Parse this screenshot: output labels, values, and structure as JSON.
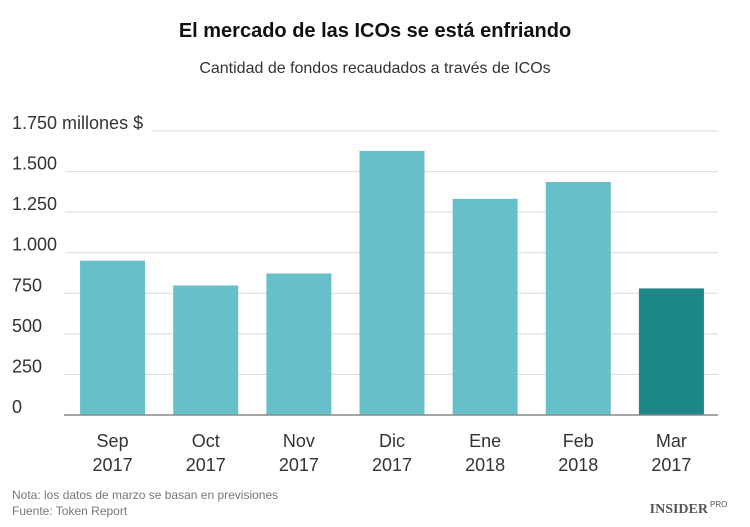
{
  "chart_data": {
    "type": "bar",
    "title": "El mercado de las ICOs se está enfriando",
    "subtitle": "Cantidad de fondos recaudados a través de ICOs",
    "categories": [
      "Sep 2017",
      "Oct 2017",
      "Nov 2017",
      "Dic 2017",
      "Ene 2018",
      "Feb 2018",
      "Mar 2017"
    ],
    "values": [
      951,
      798,
      872,
      1627,
      1332,
      1436,
      780
    ],
    "colors": [
      "#67bfca",
      "#67bfca",
      "#67bfca",
      "#67bfca",
      "#67bfca",
      "#67bfca",
      "#1d8689"
    ],
    "ylim": [
      0,
      1750
    ],
    "yticks": [
      0,
      250,
      500,
      750,
      {
        "value": 1000,
        "label": "1.000"
      },
      {
        "value": 1250,
        "label": "1.250"
      },
      {
        "value": 1500,
        "label": "1.500"
      },
      {
        "value": 1750,
        "label": "1.750 millones $"
      }
    ],
    "grid": true,
    "notes": [
      "Nota: los datos de marzo se basan en previsiones",
      "Fuente: Token Report"
    ],
    "logo": {
      "main": "INSIDER",
      "sub": "PRO"
    }
  }
}
